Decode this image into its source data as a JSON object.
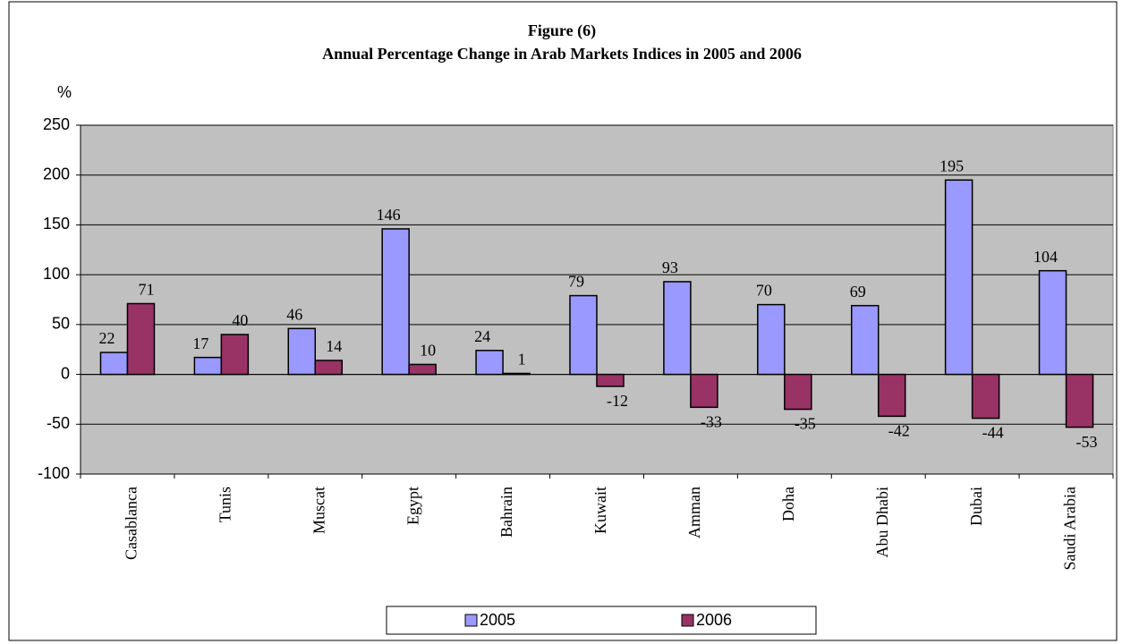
{
  "chart_data": {
    "type": "bar",
    "title": "Figure (6)",
    "subtitle": "Annual Percentage Change in Arab Markets Indices in 2005 and 2006",
    "y_label": "%",
    "categories": [
      "Casablanca",
      "Tunis",
      "Muscat",
      "Egypt",
      "Bahrain",
      "Kuwait",
      "Amman",
      "Doha",
      "Abu Dhabi",
      "Dubai",
      "Saudi Arabia"
    ],
    "series": [
      {
        "name": "2005",
        "color": "#9999ff",
        "values": [
          22,
          17,
          46,
          146,
          24,
          79,
          93,
          70,
          69,
          195,
          104
        ]
      },
      {
        "name": "2006",
        "color": "#993366",
        "values": [
          71,
          40,
          14,
          10,
          1,
          -12,
          -33,
          -35,
          -42,
          -44,
          -53
        ]
      }
    ],
    "ylim": [
      -100,
      250
    ],
    "yticks": [
      -100,
      -50,
      0,
      50,
      100,
      150,
      200,
      250
    ],
    "grid": true,
    "legend": "bottom",
    "plot_background": "#c0c0c0"
  }
}
